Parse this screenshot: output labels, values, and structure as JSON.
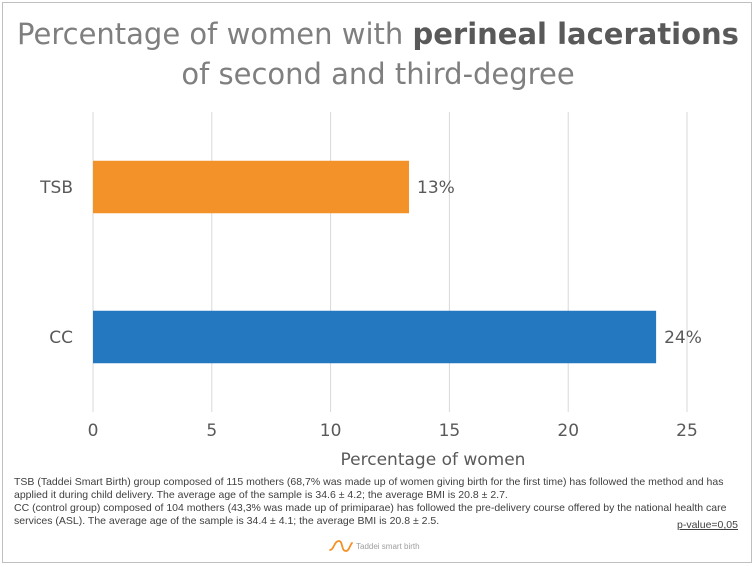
{
  "title": {
    "line1_prefix": "Percentage of women with ",
    "line1_bold": "perineal lacerations",
    "line2": "of second and third-degree"
  },
  "chart_data": {
    "type": "bar",
    "orientation": "horizontal",
    "categories": [
      "TSB",
      "CC"
    ],
    "values": [
      13.3,
      23.7
    ],
    "data_labels": [
      "13%",
      "24%"
    ],
    "colors": [
      "#f39228",
      "#2378c0"
    ],
    "xlabel": "Percentage of women",
    "ylabel": "",
    "xlim": [
      0,
      25
    ],
    "xticks": [
      0,
      5,
      10,
      15,
      20,
      25
    ],
    "grid": true
  },
  "notes": {
    "tsb": "TSB (Taddei Smart Birth) group composed of 115 mothers (68,7% was made up of women giving birth for the first time) has followed the method and has applied it during child delivery. The average age of the sample is 34.6 ± 4.2; the average BMI is 20.8 ± 2.7.",
    "cc": "CC (control group) composed of 104 mothers (43,3% was made up of primiparae) has followed the pre-delivery course offered by the national health care services (ASL). The average age of the sample is 34.4 ± 4.1; the average BMI is 20.8 ± 2.5.",
    "p_value": "p-value=0,05"
  },
  "logo_text": "Taddei smart birth"
}
